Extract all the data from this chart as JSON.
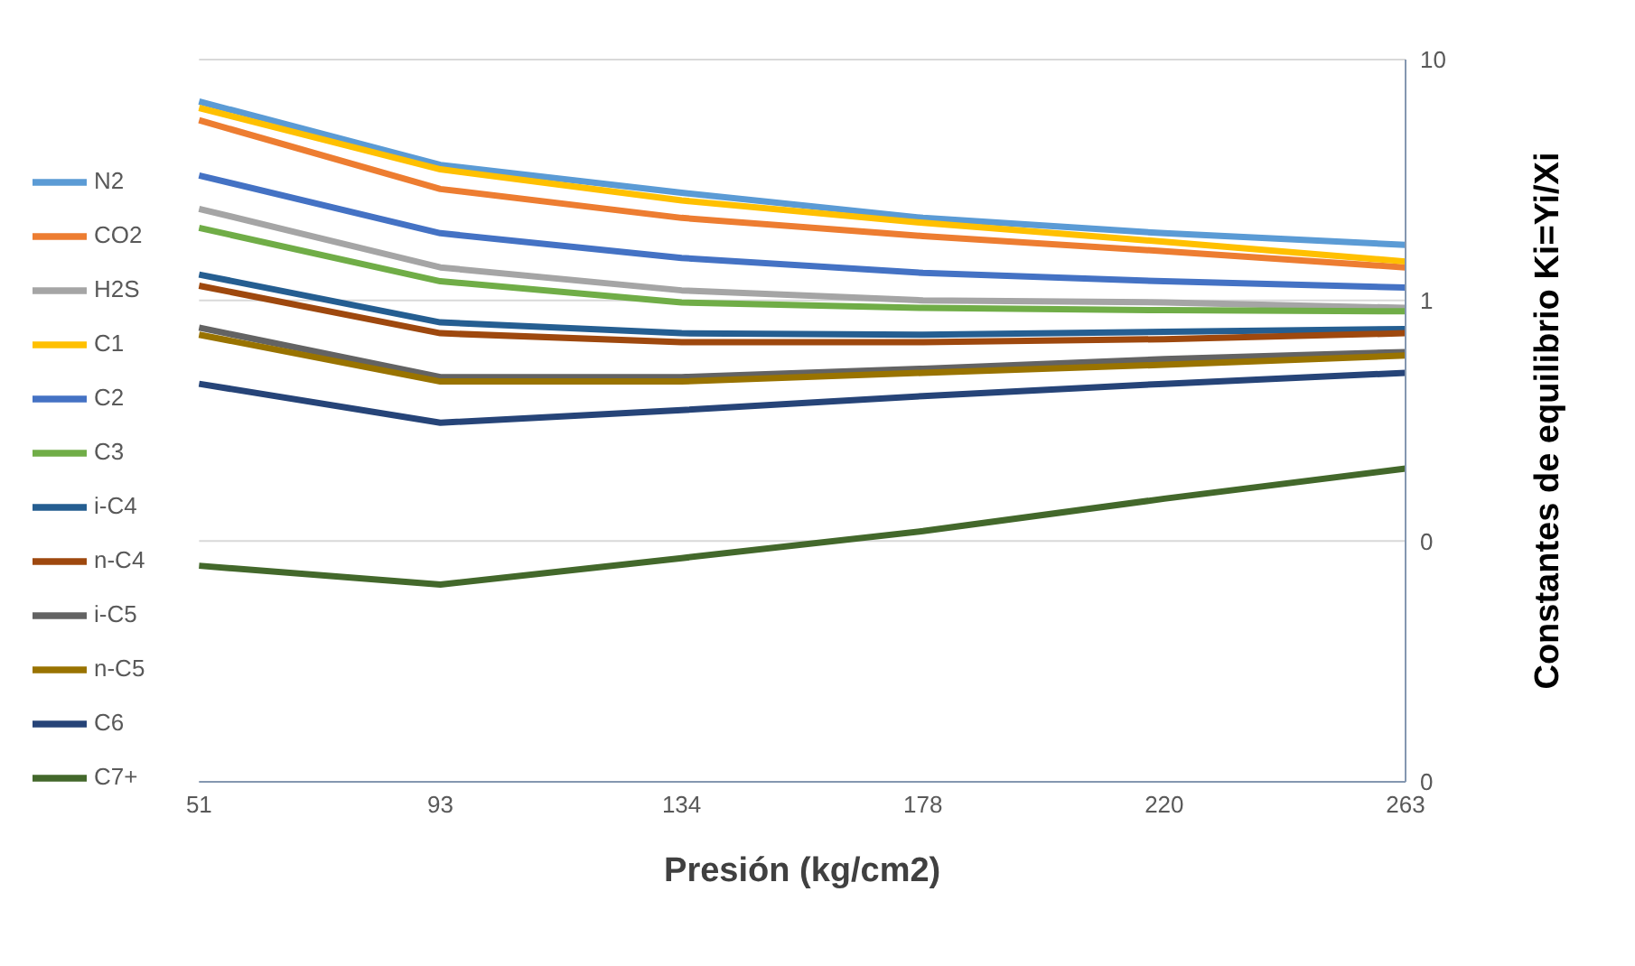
{
  "chart_data": {
    "type": "line",
    "xlabel": "Presión (kg/cm2)",
    "ylabel": "Constantes de equilibrio Ki=Yi/Xi",
    "categories": [
      "51",
      "93",
      "134",
      "178",
      "220",
      "263"
    ],
    "log": "y",
    "ylim": [
      0.01,
      10
    ],
    "yticks": [
      10,
      1,
      {
        "value": 0.1,
        "label": "0"
      },
      {
        "value": 0.01,
        "label": "0"
      }
    ],
    "grid": "y",
    "legend": "left",
    "marker": "none",
    "series": [
      {
        "name": "N2",
        "color": "#5b9bd5",
        "values": [
          6.7,
          3.65,
          2.8,
          2.2,
          1.9,
          1.7
        ]
      },
      {
        "name": "CO2",
        "color": "#ed7d31",
        "values": [
          5.6,
          2.9,
          2.2,
          1.85,
          1.6,
          1.37
        ]
      },
      {
        "name": "H2S",
        "color": "#a5a5a5",
        "values": [
          2.4,
          1.37,
          1.1,
          1.0,
          0.98,
          0.93
        ]
      },
      {
        "name": "C1",
        "color": "#ffc000",
        "values": [
          6.3,
          3.5,
          2.6,
          2.1,
          1.75,
          1.45
        ]
      },
      {
        "name": "C2",
        "color": "#4472c4",
        "values": [
          3.3,
          1.9,
          1.5,
          1.3,
          1.2,
          1.13
        ]
      },
      {
        "name": "C3",
        "color": "#70ad47",
        "values": [
          2.0,
          1.2,
          0.98,
          0.93,
          0.91,
          0.9
        ]
      },
      {
        "name": "i-C4",
        "color": "#255e91",
        "values": [
          1.28,
          0.81,
          0.73,
          0.72,
          0.74,
          0.76
        ]
      },
      {
        "name": "n-C4",
        "color": "#9e480e",
        "values": [
          1.15,
          0.73,
          0.67,
          0.67,
          0.69,
          0.73
        ]
      },
      {
        "name": "i-C5",
        "color": "#636363",
        "values": [
          0.77,
          0.48,
          0.48,
          0.52,
          0.57,
          0.61
        ]
      },
      {
        "name": "n-C5",
        "color": "#997300",
        "values": [
          0.72,
          0.46,
          0.46,
          0.5,
          0.54,
          0.59
        ]
      },
      {
        "name": "C6",
        "color": "#264478",
        "values": [
          0.45,
          0.31,
          0.35,
          0.4,
          0.45,
          0.5
        ]
      },
      {
        "name": "C7+",
        "color": "#43682b",
        "values": [
          0.079,
          0.066,
          0.085,
          0.11,
          0.15,
          0.2
        ]
      }
    ]
  }
}
